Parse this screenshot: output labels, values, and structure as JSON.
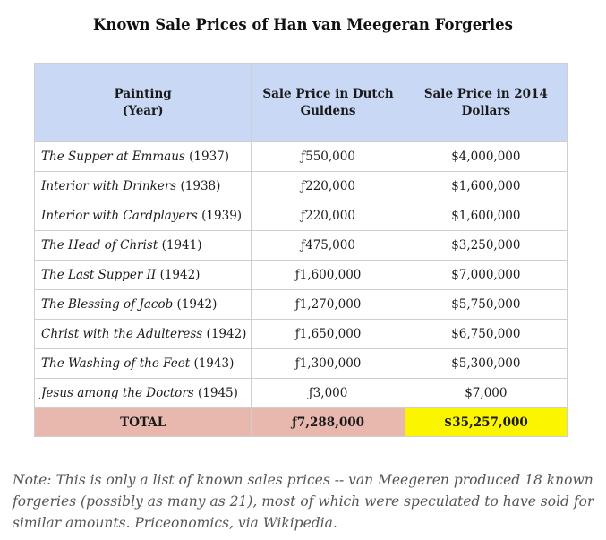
{
  "title": "Known Sale Prices of Han van Meegeran Forgeries",
  "table": {
    "headers": {
      "painting_line1": "Painting",
      "painting_line2": "(Year)",
      "guldens_line1": "Sale Price in Dutch",
      "guldens_line2": "Guldens",
      "dollars_line1": "Sale Price in 2014",
      "dollars_line2": "Dollars"
    },
    "rows": [
      {
        "title": "The Supper at Emmaus",
        "year": "(1937)",
        "guldens": "ƒ550,000",
        "dollars": "$4,000,000"
      },
      {
        "title": "Interior with Drinkers",
        "year": "(1938)",
        "guldens": "ƒ220,000",
        "dollars": "$1,600,000"
      },
      {
        "title": "Interior with Cardplayers",
        "year": "(1939)",
        "guldens": "ƒ220,000",
        "dollars": "$1,600,000"
      },
      {
        "title": "The Head of Christ",
        "year": "(1941)",
        "guldens": "ƒ475,000",
        "dollars": "$3,250,000"
      },
      {
        "title": "The Last Supper II",
        "year": "(1942)",
        "guldens": "ƒ1,600,000",
        "dollars": "$7,000,000"
      },
      {
        "title": "The Blessing of Jacob",
        "year": "(1942)",
        "guldens": "ƒ1,270,000",
        "dollars": "$5,750,000"
      },
      {
        "title": "Christ with the Adulteress",
        "year": "(1942)",
        "guldens": "ƒ1,650,000",
        "dollars": "$6,750,000"
      },
      {
        "title": "The Washing of the Feet",
        "year": "(1943)",
        "guldens": "ƒ1,300,000",
        "dollars": "$5,300,000"
      },
      {
        "title": "Jesus among the Doctors",
        "year": "(1945)",
        "guldens": "ƒ3,000",
        "dollars": "$7,000"
      }
    ],
    "total": {
      "label": "TOTAL",
      "guldens": "ƒ7,288,000",
      "dollars": "$35,257,000"
    }
  },
  "note": "Note: This is only a list of known sales prices -- van Meegeren produced 18 known forgeries (possibly as many as 21), most of which were speculated to have sold for similar amounts. Priceonomics, via Wikipedia.",
  "colors": {
    "header_bg": "#c9d9f5",
    "total_bg": "#e8b8ae",
    "total_highlight": "#fcf500"
  }
}
